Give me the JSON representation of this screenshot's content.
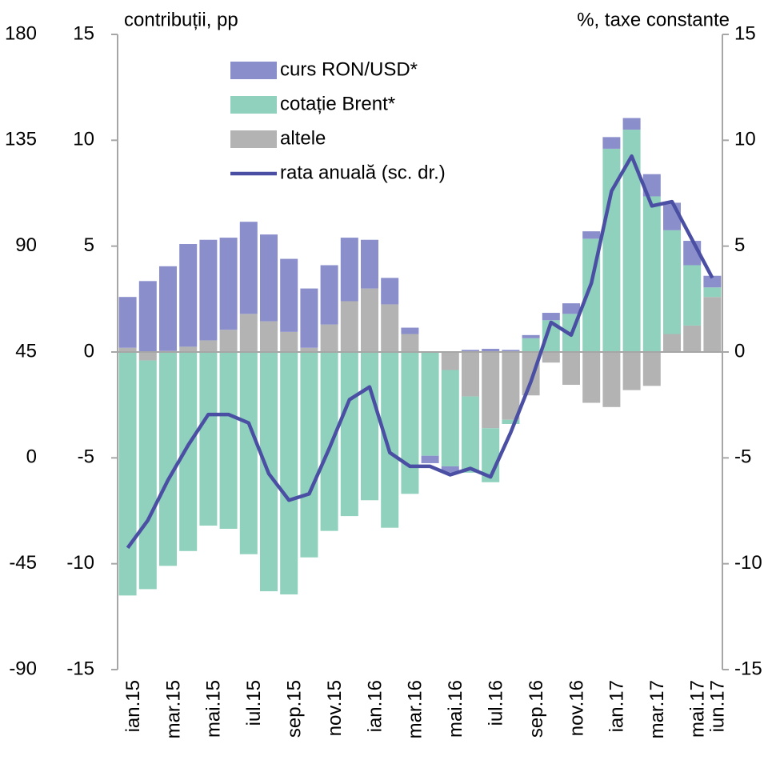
{
  "chart_data": {
    "type": "bar",
    "ylabel": "contribuții, pp",
    "y2label": "%, taxe constante",
    "categories": [
      "ian.15",
      null,
      "mar.15",
      null,
      "mai.15",
      null,
      "iul.15",
      null,
      "sep.15",
      null,
      "nov.15",
      null,
      "ian.16",
      null,
      "mar.16",
      null,
      "mai.16",
      null,
      "iul.16",
      null,
      "sep.16",
      null,
      "nov.16",
      null,
      "ian.17",
      null,
      "mar.17",
      null,
      "mai.17",
      "iun.17"
    ],
    "series": [
      {
        "name": "curs RON/USD*",
        "color": "#8a8fcc",
        "values": [
          2.4,
          3.35,
          4.0,
          4.85,
          4.75,
          4.35,
          4.35,
          4.1,
          3.45,
          2.8,
          2.8,
          3.0,
          2.3,
          1.25,
          0.3,
          -0.35,
          -0.3,
          0.1,
          0.15,
          0.1,
          0.15,
          0.35,
          0.5,
          0.35,
          0.55,
          0.55,
          1.05,
          1.3,
          1.15,
          0.55
        ]
      },
      {
        "name": "cotație Brent*",
        "color": "#8fd1bd",
        "values": [
          -11.5,
          -10.8,
          -10.1,
          -9.4,
          -8.2,
          -8.35,
          -9.55,
          -11.3,
          -11.45,
          -9.7,
          -8.45,
          -7.75,
          -7.0,
          -8.3,
          -6.7,
          -4.9,
          -4.55,
          -3.6,
          -2.55,
          -0.2,
          0.65,
          1.5,
          1.8,
          5.35,
          9.6,
          10.5,
          7.35,
          4.9,
          2.85,
          0.45
        ]
      },
      {
        "name": "altele",
        "color": "#b3b3b3",
        "values": [
          0.2,
          -0.4,
          0.05,
          0.25,
          0.55,
          1.05,
          1.8,
          1.45,
          0.95,
          0.2,
          1.3,
          2.4,
          3.0,
          2.25,
          0.85,
          0,
          -0.85,
          -2.1,
          -3.6,
          -3.2,
          -2.05,
          -0.5,
          -1.55,
          -2.4,
          -2.6,
          -1.8,
          -1.6,
          0.85,
          1.25,
          2.6
        ]
      },
      {
        "name": "rata anuală (sc. dr.)",
        "color": "#4a4fa3",
        "type": "line",
        "axis": "y2",
        "values": [
          -9.25,
          -7.95,
          -6.05,
          -4.4,
          -2.95,
          -2.95,
          -3.35,
          -5.75,
          -7.0,
          -6.7,
          -4.55,
          -2.25,
          -1.65,
          -4.75,
          -5.4,
          -5.4,
          -5.8,
          -5.5,
          -5.9,
          -3.8,
          -1.4,
          1.4,
          0.8,
          3.25,
          7.6,
          9.25,
          6.9,
          7.1,
          5.3,
          3.5
        ]
      }
    ],
    "ylim": [
      -15,
      15
    ],
    "yticks": [
      -15,
      -10,
      -5,
      0,
      5,
      10,
      15
    ],
    "y2lim": [
      -15,
      15
    ],
    "y2ticks": [
      -15,
      -10,
      -5,
      0,
      5,
      10,
      15
    ],
    "y3lim": [
      -90,
      180
    ],
    "y3ticks": [
      -90,
      -45,
      0,
      45,
      90,
      135,
      180
    ],
    "stacked": true,
    "legend": "top-left"
  }
}
